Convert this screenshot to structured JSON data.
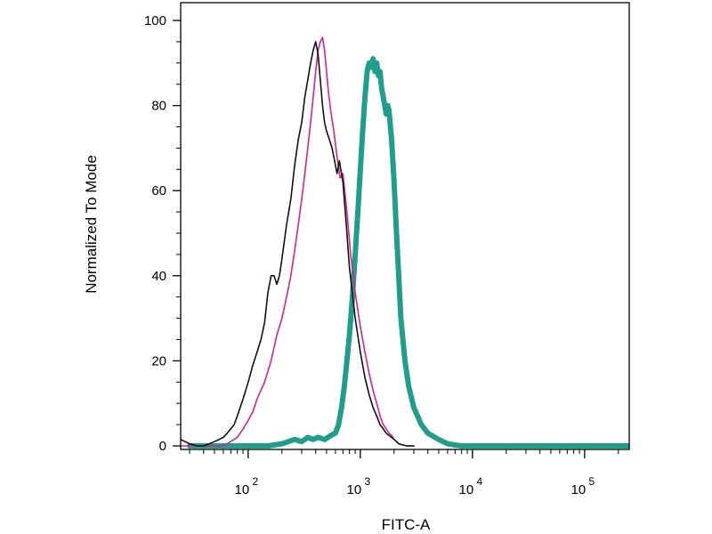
{
  "chart_data": {
    "type": "line",
    "title": "",
    "xlabel": "FITC-A",
    "ylabel": "Normalized To Mode",
    "x_scale": "log",
    "xlim": [
      25,
      250000
    ],
    "ylim": [
      0,
      100
    ],
    "y_ticks": [
      0,
      20,
      40,
      60,
      80,
      100
    ],
    "x_ticks": [
      {
        "value": 100,
        "base": "10",
        "exp": "2"
      },
      {
        "value": 1000,
        "base": "10",
        "exp": "3"
      },
      {
        "value": 10000,
        "base": "10",
        "exp": "4"
      },
      {
        "value": 100000,
        "base": "10",
        "exp": "5"
      }
    ],
    "grid": false,
    "legend": "none",
    "series": [
      {
        "color": "#d0268a",
        "line_width": 1.6,
        "x": [
          25,
          35,
          50,
          60,
          70,
          80,
          90,
          100,
          110,
          120,
          140,
          160,
          180,
          200,
          220,
          240,
          260,
          280,
          300,
          320,
          340,
          360,
          380,
          400,
          420,
          440,
          460,
          480,
          500,
          520,
          550,
          580,
          620,
          660,
          700,
          760,
          820,
          900,
          1000,
          1100,
          1200,
          1300,
          1400,
          1500,
          1600,
          1700,
          1800,
          1900,
          2000,
          2100,
          2200,
          2400,
          2600,
          3000
        ],
        "y": [
          0,
          0,
          0,
          0,
          1,
          2,
          4,
          6,
          8,
          11,
          15,
          20,
          26,
          30,
          35,
          40,
          46,
          52,
          58,
          64,
          70,
          76,
          82,
          88,
          93,
          95,
          96,
          93,
          88,
          83,
          78,
          74,
          68,
          63,
          64,
          55,
          45,
          36,
          28,
          22,
          17,
          13,
          10,
          7,
          5,
          4,
          3,
          2.5,
          1.5,
          1,
          0.5,
          0.2,
          0,
          0
        ]
      },
      {
        "color": "#111111",
        "line_width": 1.6,
        "x": [
          25,
          30,
          35,
          40,
          45,
          50,
          55,
          60,
          65,
          70,
          75,
          80,
          90,
          100,
          110,
          120,
          130,
          140,
          150,
          160,
          170,
          180,
          190,
          200,
          220,
          240,
          260,
          280,
          300,
          320,
          340,
          360,
          380,
          400,
          420,
          440,
          460,
          480,
          500,
          530,
          560,
          600,
          620,
          650,
          700,
          750,
          800,
          900,
          1000,
          1100,
          1200,
          1300,
          1400,
          1500,
          1600,
          1700,
          1800,
          1900,
          2000,
          2100,
          2200,
          2400,
          2600,
          3000
        ],
        "y": [
          1.5,
          0.5,
          0,
          0,
          0.5,
          1,
          1.5,
          2,
          3,
          4,
          5,
          7,
          11,
          15,
          19,
          22,
          25,
          29,
          36,
          40,
          40,
          38,
          40,
          44,
          52,
          58,
          66,
          72,
          76,
          82,
          86,
          90,
          93,
          95,
          92,
          86,
          80,
          76,
          74,
          72,
          70,
          66,
          64,
          67,
          62,
          52,
          42,
          30,
          22,
          16,
          12,
          9,
          7,
          5,
          4,
          3,
          2.5,
          2,
          1.5,
          1,
          0.5,
          0.2,
          0,
          0
        ]
      },
      {
        "color": "#1f9e8b",
        "line_width": 6,
        "x": [
          30,
          100,
          150,
          200,
          260,
          300,
          340,
          380,
          420,
          480,
          550,
          600,
          640,
          680,
          720,
          760,
          800,
          850,
          900,
          950,
          1000,
          1050,
          1100,
          1150,
          1200,
          1250,
          1300,
          1350,
          1400,
          1450,
          1500,
          1550,
          1600,
          1650,
          1700,
          1750,
          1800,
          1900,
          2000,
          2100,
          2200,
          2300,
          2500,
          2700,
          3000,
          3500,
          4000,
          5000,
          6000,
          7000,
          8000,
          10000,
          250000
        ],
        "y": [
          0,
          0,
          0,
          0.5,
          1.5,
          1,
          2,
          1.5,
          2,
          1.5,
          2.5,
          3,
          5,
          9,
          14,
          20,
          26,
          35,
          45,
          55,
          65,
          74,
          82,
          88,
          90,
          89,
          91,
          88,
          90,
          87,
          88,
          84,
          82,
          80,
          78,
          80,
          79,
          72,
          62,
          50,
          40,
          30,
          20,
          14,
          9,
          5,
          3,
          1.5,
          0.5,
          0.2,
          0,
          0,
          0
        ]
      }
    ]
  }
}
